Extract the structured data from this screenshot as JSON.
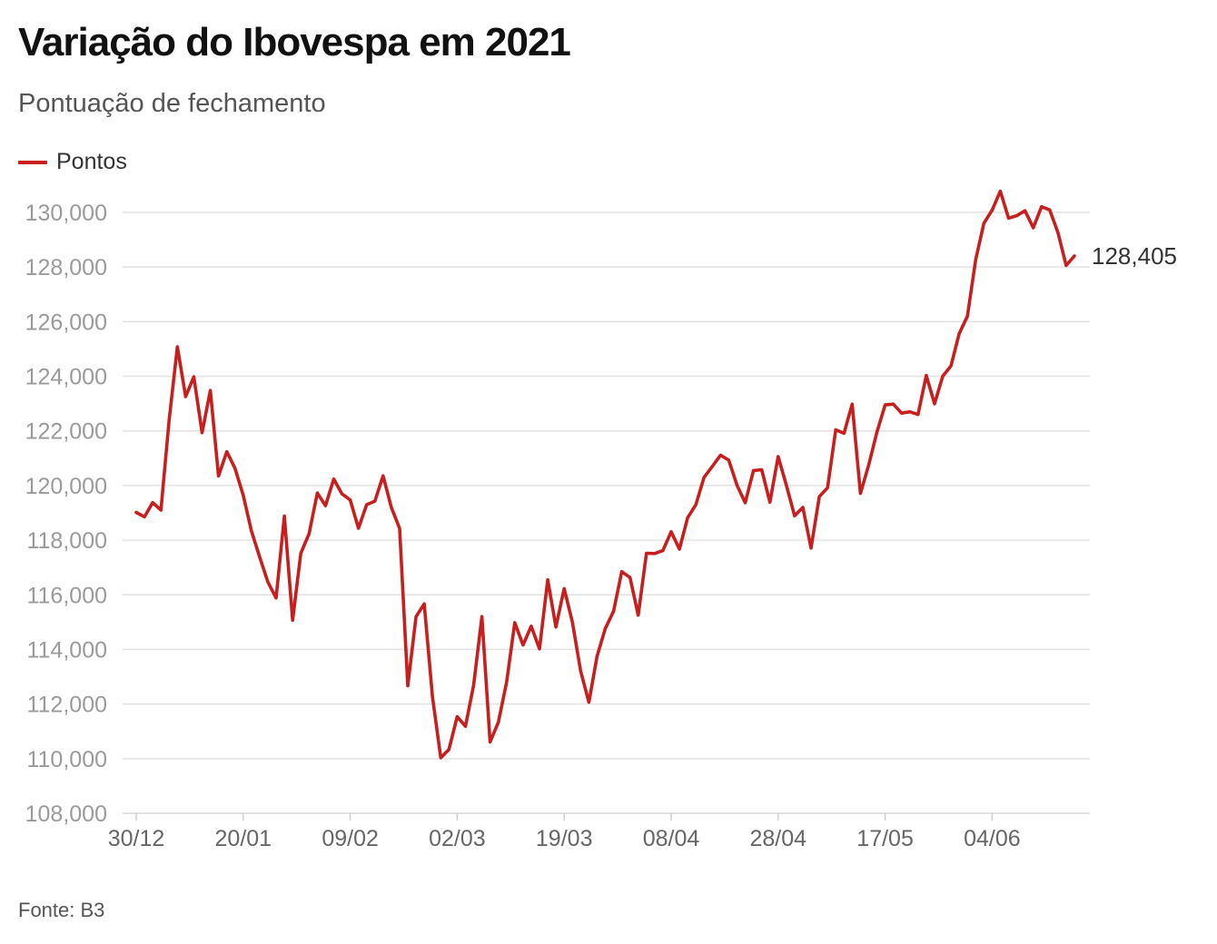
{
  "title": "Variação do Ibovespa em 2021",
  "subtitle": "Pontuação de fechamento",
  "source": "Fonte: B3",
  "colors": {
    "series": "#c81e1e",
    "grid": "#e2e2e2",
    "axis_text": "#9a9a9a"
  },
  "chart_data": {
    "type": "line",
    "title": "Variação do Ibovespa em 2021",
    "subtitle": "Pontuação de fechamento",
    "xlabel": "",
    "ylabel": "",
    "ylim": [
      108000,
      130000
    ],
    "yticks": [
      108000,
      110000,
      112000,
      114000,
      116000,
      118000,
      120000,
      122000,
      124000,
      126000,
      128000,
      130000
    ],
    "ytick_labels": [
      "108,000",
      "110,000",
      "112,000",
      "114,000",
      "116,000",
      "118,000",
      "120,000",
      "122,000",
      "124,000",
      "126,000",
      "128,000",
      "130,000"
    ],
    "xtick_labels": [
      "30/12",
      "20/01",
      "09/02",
      "02/03",
      "19/03",
      "08/04",
      "28/04",
      "17/05",
      "04/06"
    ],
    "xtick_indices": [
      0,
      13,
      26,
      39,
      52,
      65,
      78,
      91,
      104
    ],
    "grid": true,
    "legend": {
      "position": "top-left",
      "entries": [
        "Pontos"
      ]
    },
    "end_label": "128,405",
    "series": [
      {
        "name": "Pontos",
        "values": [
          119017,
          118855,
          119376,
          119101,
          122386,
          125077,
          123255,
          123980,
          121933,
          123480,
          120348,
          121241,
          120636,
          119646,
          118329,
          117381,
          116464,
          115882,
          118883,
          115068,
          117518,
          118235,
          119725,
          119261,
          120240,
          119696,
          119472,
          118434,
          119300,
          119429,
          120356,
          119199,
          118430,
          112668,
          115202,
          115668,
          112256,
          110035,
          110335,
          111540,
          111184,
          112690,
          115202,
          110612,
          111331,
          112800,
          114980,
          114160,
          114850,
          114020,
          116550,
          114820,
          116230,
          114990,
          113210,
          112064,
          113750,
          114770,
          115400,
          116850,
          116630,
          115250,
          117520,
          117510,
          117620,
          118310,
          117670,
          118820,
          119300,
          120300,
          120700,
          121110,
          120930,
          120010,
          119370,
          120550,
          120580,
          119390,
          121060,
          120000,
          118890,
          119200,
          117710,
          119590,
          119920,
          122040,
          121910,
          122980,
          119710,
          120750,
          121950,
          122950,
          122980,
          122650,
          122700,
          122600,
          124030,
          122990,
          124000,
          124380,
          125560,
          126200,
          128270,
          129600,
          130080,
          130776,
          129790,
          129880,
          130060,
          129440,
          130210,
          130090,
          129260,
          128060,
          128405
        ]
      }
    ]
  }
}
